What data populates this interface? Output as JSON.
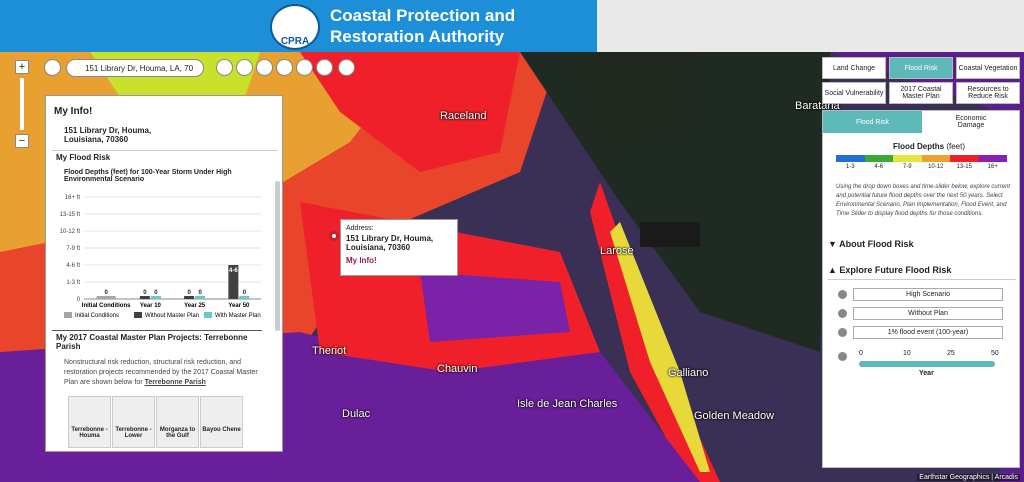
{
  "header": {
    "logo": "CPRA",
    "title_line1": "Coastal Protection and",
    "title_line2": "Restoration Authority"
  },
  "search": {
    "value": "151 Library Dr, Houma, LA, 70"
  },
  "map_labels": [
    "Raceland",
    "Larose",
    "Barataria",
    "Theriot",
    "Chauvin",
    "Dulac",
    "Isle de Jean Charles",
    "Galliano",
    "Golden Meadow"
  ],
  "popup": {
    "label": "Address:",
    "address": "151 Library Dr, Houma, Louisiana, 70360",
    "link": "My Info!"
  },
  "info_panel": {
    "title": "My Info!",
    "address": "151 Library Dr, Houma, Louisiana, 70360",
    "section1": "My Flood Risk",
    "section2": "My 2017 Coastal Master Plan Projects: Terrebonne Parish",
    "description": "Nonstructural risk reduction, structural risk reduction, and restoration projects recommended by the 2017 Coastal Master Plan are shown below for",
    "link": "Terrebonne Parish",
    "projects": [
      "Terrebonne - Houma",
      "Terrebonne - Lower",
      "Morganza to the Gulf",
      "Bayou Chene"
    ]
  },
  "chart_data": {
    "type": "bar",
    "title": "Flood Depths (feet) for 100-Year Storm Under High Environmental Scenario",
    "categories": [
      "Initial Conditions",
      "Year 10",
      "Year 25",
      "Year 50"
    ],
    "series": [
      {
        "name": "Initial Conditions",
        "color": "#a6a6a6",
        "values": [
          0,
          null,
          null,
          null
        ],
        "value_labels": [
          "0",
          null,
          null,
          null
        ]
      },
      {
        "name": "Without Master Plan",
        "color": "#404040",
        "values": [
          null,
          0,
          0,
          2
        ],
        "value_labels": [
          null,
          "0",
          "0",
          "4-6"
        ]
      },
      {
        "name": "With Master Plan",
        "color": "#6cc8c8",
        "values": [
          null,
          0,
          0,
          0
        ],
        "value_labels": [
          null,
          "0",
          "0",
          "0"
        ]
      }
    ],
    "ylim": [
      0,
      6
    ],
    "yticks": [
      0,
      {
        "value": 1,
        "label": "1-3 ft"
      },
      {
        "value": 2,
        "label": "4-6 ft"
      },
      {
        "value": 3,
        "label": "7-9 ft"
      },
      {
        "value": 4,
        "label": "10-12 ft"
      },
      {
        "value": 5,
        "label": "13-15 ft"
      },
      {
        "value": 6,
        "label": "16+ ft"
      }
    ],
    "grid": true
  },
  "tabs": [
    "Land Change",
    "Flood Risk",
    "Coastal Vegetation",
    "Social Vulnerability",
    "2017 Coastal Master Plan",
    "Resources to Reduce Risk"
  ],
  "right_panel": {
    "tabs": [
      "Flood Risk",
      "Economic Damage"
    ],
    "legend_title": "Flood Depths",
    "legend_unit": "(feet)",
    "legend": [
      {
        "label": "1-3",
        "color": "#1f6fd6"
      },
      {
        "label": "4-6",
        "color": "#3aaa35"
      },
      {
        "label": "7-9",
        "color": "#e6e63a"
      },
      {
        "label": "10-12",
        "color": "#f0a030"
      },
      {
        "label": "13-15",
        "color": "#f0202a"
      },
      {
        "label": "16+",
        "color": "#8a1fb5"
      }
    ],
    "description": "Using the drop down boxes and time-slider below, explore current and potential future flood depths over the next 50 years. Select Environmental Scenario, Plan Implementation, Flood Event, and Time Slider to display flood depths for those conditions.",
    "about": "About Flood Risk",
    "explore": "Explore Future Flood Risk",
    "selects": [
      "High Scenario",
      "Without Plan",
      "1% flood event (100-year)"
    ],
    "slider_ticks": [
      "0",
      "10",
      "25",
      "50"
    ],
    "slider_label": "Year"
  },
  "attribution": "Earthstar Geographics | Arcadis"
}
